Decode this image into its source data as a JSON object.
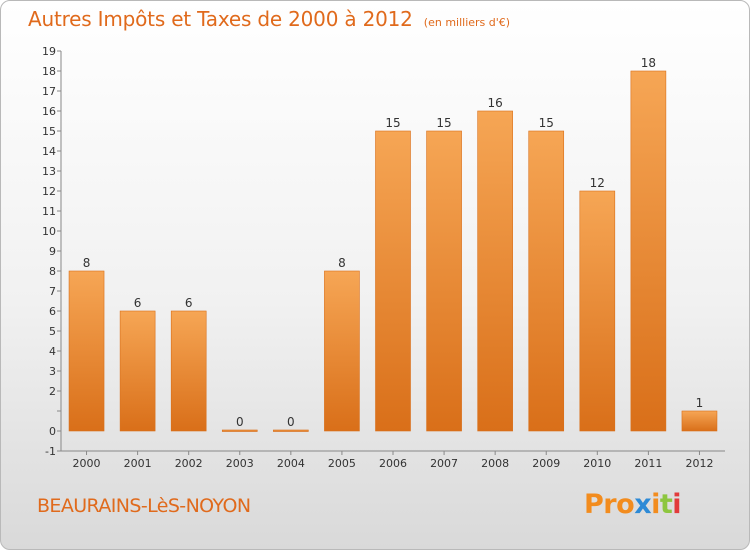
{
  "header": {
    "title": "Autres Impôts et Taxes de 2000 à 2012",
    "unit_note": "(en milliers d'€)"
  },
  "footer": {
    "town": "BEAURAINS-LèS-NOYON",
    "logo_text": "Proxiti",
    "logo_colors": [
      "#f28c1e",
      "#f28c1e",
      "#f28c1e",
      "#2d8ad6",
      "#f28c1e",
      "#8dc63f",
      "#e23b3b"
    ]
  },
  "colors": {
    "bar_light": "#f6a655",
    "bar_dark": "#d96f19",
    "axis_text": "#333333",
    "grid": "#dddddd"
  },
  "chart_data": {
    "type": "bar",
    "title": "Autres Impôts et Taxes de 2000 à 2012",
    "subtitle": "(en milliers d'€)",
    "categories": [
      "2000",
      "2001",
      "2002",
      "2003",
      "2004",
      "2005",
      "2006",
      "2007",
      "2008",
      "2009",
      "2010",
      "2011",
      "2012"
    ],
    "values": [
      8,
      6,
      6,
      0,
      0,
      8,
      15,
      15,
      16,
      15,
      12,
      18,
      1
    ],
    "data_labels": [
      "8",
      "6",
      "6",
      "0",
      "0",
      "8",
      "15",
      "15",
      "16",
      "15",
      "12",
      "18",
      "1"
    ],
    "ylim": [
      -1,
      19
    ],
    "yticks": [
      -1,
      0,
      1,
      2,
      3,
      4,
      5,
      6,
      7,
      8,
      9,
      10,
      11,
      12,
      13,
      14,
      15,
      16,
      17,
      18,
      19
    ],
    "ytick_labels": [
      "-1",
      "0",
      "",
      "2",
      "3",
      "4",
      "5",
      "6",
      "7",
      "8",
      "9",
      "10",
      "11",
      "12",
      "13",
      "14",
      "15",
      "16",
      "17",
      "18",
      "19"
    ],
    "grid": false,
    "legend": "none"
  }
}
